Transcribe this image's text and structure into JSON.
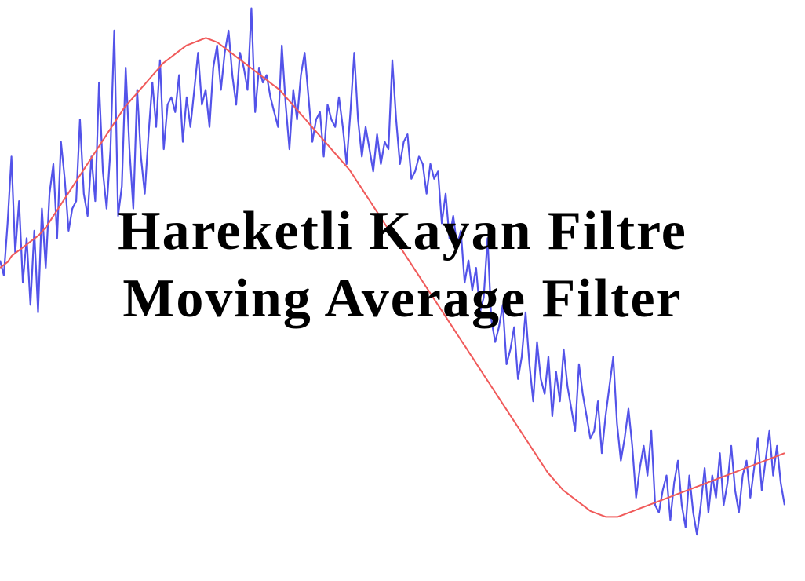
{
  "chart_data": {
    "type": "line",
    "title": "Hareketli Kayan Filtre",
    "subtitle": "Moving Average Filter",
    "xlabel": "",
    "ylabel": "",
    "grid": false,
    "legend": "none",
    "axes_visible": false,
    "xlim": [
      0,
      200
    ],
    "ylim": [
      -1.8,
      1.8
    ],
    "colors": {
      "noisy": "#4a4ae8",
      "smoothed": "#f05a5a",
      "title": "#000000"
    },
    "series": [
      {
        "key": "noisy",
        "values": [
          0.15,
          0.05,
          0.4,
          0.85,
          0.2,
          0.55,
          0.0,
          0.3,
          -0.15,
          0.35,
          -0.2,
          0.5,
          0.1,
          0.6,
          0.8,
          0.3,
          0.95,
          0.7,
          0.35,
          0.5,
          0.55,
          1.1,
          0.6,
          0.45,
          0.85,
          0.55,
          1.35,
          0.75,
          0.5,
          0.9,
          1.7,
          0.45,
          0.65,
          1.45,
          0.9,
          0.5,
          1.3,
          0.85,
          0.6,
          1.0,
          1.35,
          1.05,
          1.5,
          0.9,
          1.2,
          1.25,
          1.15,
          1.4,
          0.95,
          1.25,
          1.05,
          1.3,
          1.55,
          1.2,
          1.3,
          1.05,
          1.45,
          1.6,
          1.3,
          1.55,
          1.7,
          1.4,
          1.2,
          1.55,
          1.45,
          1.3,
          1.85,
          1.15,
          1.45,
          1.35,
          1.4,
          1.25,
          1.15,
          1.05,
          1.6,
          1.2,
          0.9,
          1.3,
          1.1,
          1.4,
          1.55,
          1.25,
          0.95,
          1.1,
          1.15,
          0.85,
          1.2,
          1.1,
          1.05,
          1.25,
          1.05,
          0.8,
          1.15,
          1.55,
          1.1,
          0.85,
          1.05,
          0.9,
          0.75,
          1.0,
          0.8,
          0.95,
          0.9,
          1.5,
          1.1,
          0.8,
          0.95,
          1.0,
          0.7,
          0.75,
          0.85,
          0.8,
          0.6,
          0.8,
          0.7,
          0.75,
          0.4,
          0.6,
          0.3,
          0.45,
          0.25,
          0.35,
          0.0,
          0.15,
          -0.05,
          0.1,
          -0.2,
          -0.1,
          0.3,
          -0.25,
          -0.4,
          -0.3,
          -0.15,
          -0.55,
          -0.45,
          -0.3,
          -0.65,
          -0.5,
          -0.2,
          -0.55,
          -0.8,
          -0.4,
          -0.65,
          -0.75,
          -0.5,
          -0.9,
          -0.6,
          -0.8,
          -0.45,
          -0.7,
          -0.85,
          -1.0,
          -0.55,
          -0.75,
          -0.9,
          -1.05,
          -1.0,
          -0.8,
          -1.15,
          -0.9,
          -0.7,
          -0.5,
          -0.95,
          -1.2,
          -1.05,
          -0.85,
          -1.1,
          -1.45,
          -1.25,
          -1.1,
          -1.3,
          -1.0,
          -1.5,
          -1.55,
          -1.4,
          -1.3,
          -1.6,
          -1.35,
          -1.2,
          -1.5,
          -1.65,
          -1.3,
          -1.55,
          -1.7,
          -1.5,
          -1.25,
          -1.55,
          -1.3,
          -1.45,
          -1.15,
          -1.5,
          -1.35,
          -1.1,
          -1.4,
          -1.55,
          -1.3,
          -1.2,
          -1.45,
          -1.25,
          -1.05,
          -1.4,
          -1.2,
          -1.0,
          -1.3,
          -1.1,
          -1.35,
          -1.5
        ]
      },
      {
        "key": "smoothed",
        "values": [
          0.1,
          0.12,
          0.14,
          0.18,
          0.2,
          0.22,
          0.24,
          0.26,
          0.28,
          0.3,
          0.32,
          0.35,
          0.38,
          0.42,
          0.46,
          0.5,
          0.54,
          0.58,
          0.62,
          0.66,
          0.7,
          0.74,
          0.78,
          0.82,
          0.86,
          0.9,
          0.94,
          0.98,
          1.02,
          1.06,
          1.1,
          1.14,
          1.18,
          1.21,
          1.24,
          1.27,
          1.3,
          1.33,
          1.36,
          1.39,
          1.42,
          1.45,
          1.48,
          1.5,
          1.52,
          1.54,
          1.56,
          1.58,
          1.6,
          1.61,
          1.62,
          1.63,
          1.64,
          1.65,
          1.64,
          1.63,
          1.62,
          1.6,
          1.58,
          1.56,
          1.54,
          1.52,
          1.5,
          1.48,
          1.46,
          1.44,
          1.42,
          1.4,
          1.38,
          1.36,
          1.34,
          1.32,
          1.3,
          1.27,
          1.24,
          1.21,
          1.18,
          1.15,
          1.12,
          1.09,
          1.06,
          1.03,
          1.0,
          0.97,
          0.94,
          0.91,
          0.88,
          0.85,
          0.82,
          0.79,
          0.76,
          0.72,
          0.68,
          0.64,
          0.6,
          0.56,
          0.52,
          0.48,
          0.44,
          0.4,
          0.36,
          0.32,
          0.28,
          0.24,
          0.2,
          0.16,
          0.12,
          0.08,
          0.04,
          0.0,
          -0.04,
          -0.08,
          -0.12,
          -0.16,
          -0.2,
          -0.24,
          -0.28,
          -0.32,
          -0.36,
          -0.4,
          -0.44,
          -0.48,
          -0.52,
          -0.56,
          -0.6,
          -0.64,
          -0.68,
          -0.72,
          -0.76,
          -0.8,
          -0.84,
          -0.88,
          -0.92,
          -0.96,
          -1.0,
          -1.04,
          -1.08,
          -1.12,
          -1.16,
          -1.2,
          -1.24,
          -1.28,
          -1.31,
          -1.34,
          -1.37,
          -1.4,
          -1.42,
          -1.44,
          -1.46,
          -1.48,
          -1.5,
          -1.52,
          -1.54,
          -1.55,
          -1.56,
          -1.57,
          -1.58,
          -1.58,
          -1.58,
          -1.58,
          -1.57,
          -1.56,
          -1.55,
          -1.54,
          -1.53,
          -1.52,
          -1.51,
          -1.5,
          -1.49,
          -1.48,
          -1.47,
          -1.46,
          -1.45,
          -1.44,
          -1.43,
          -1.42,
          -1.41,
          -1.4,
          -1.39,
          -1.38,
          -1.37,
          -1.36,
          -1.35,
          -1.34,
          -1.33,
          -1.32,
          -1.31,
          -1.3,
          -1.29,
          -1.28,
          -1.27,
          -1.26,
          -1.25,
          -1.24,
          -1.23,
          -1.22,
          -1.21,
          -1.2,
          -1.19,
          -1.18,
          -1.17,
          -1.16,
          -1.15
        ]
      }
    ]
  }
}
